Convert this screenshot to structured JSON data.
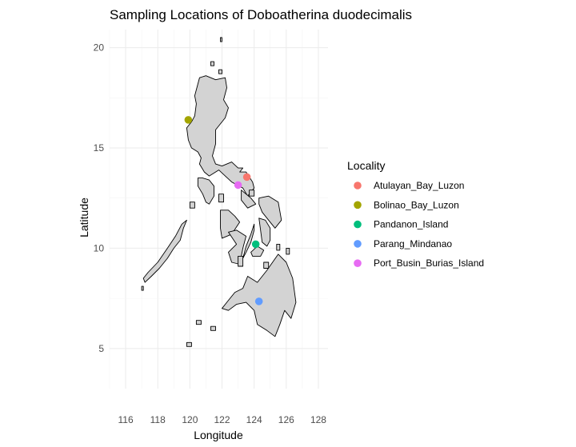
{
  "chart_data": {
    "type": "scatter",
    "title": "Sampling Locations of Doboatherina duodecimalis",
    "xlabel": "Longitude",
    "ylabel": "Latitude",
    "xlim": [
      115,
      128.6
    ],
    "ylim": [
      3.0,
      20.9
    ],
    "x_ticks": [
      116,
      118,
      120,
      122,
      124,
      126,
      128
    ],
    "y_ticks": [
      5,
      10,
      15,
      20
    ],
    "grid": true,
    "legend": {
      "title": "Locality",
      "position": "right"
    },
    "series": [
      {
        "name": "Atulayan_Bay_Luzon",
        "color": "#F8766D",
        "x": [
          123.55
        ],
        "y": [
          13.55
        ]
      },
      {
        "name": "Bolinao_Bay_Luzon",
        "color": "#A3A500",
        "x": [
          119.9
        ],
        "y": [
          16.4
        ]
      },
      {
        "name": "Pandanon_Island",
        "color": "#00BF7D",
        "x": [
          124.1
        ],
        "y": [
          10.2
        ]
      },
      {
        "name": "Parang_Mindanao",
        "color": "#619CFF",
        "x": [
          124.3
        ],
        "y": [
          7.35
        ]
      },
      {
        "name": "Port_Busin_Burias_Island",
        "color": "#E76BF3",
        "x": [
          123.0
        ],
        "y": [
          13.15
        ]
      }
    ]
  }
}
